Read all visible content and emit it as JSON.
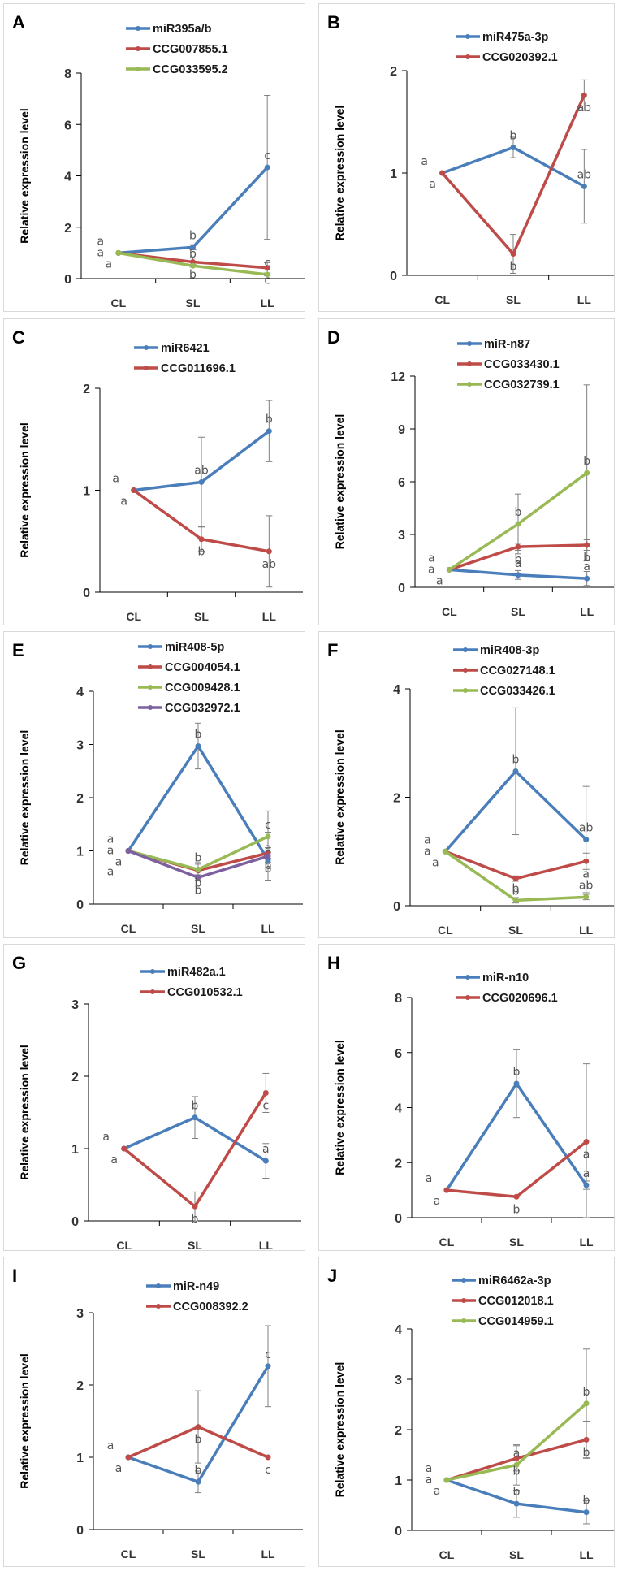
{
  "colors": {
    "blue": "#4a7ebb",
    "red": "#be4b48",
    "green": "#98b954",
    "purple": "#7d60a0",
    "axis": "#000000",
    "errorbar": "#7f7f7f"
  },
  "chart_data": [
    {
      "panel": "A",
      "type": "line",
      "categories": [
        "CL",
        "SL",
        "LL"
      ],
      "ylabel": "Relative expression level",
      "ylim": [
        0,
        8
      ],
      "yticks": [
        0,
        2,
        4,
        6,
        8
      ],
      "legend": "top-right",
      "series": [
        {
          "name": "miR395a/b",
          "color": "blue",
          "values": [
            1.0,
            1.22,
            4.33
          ],
          "errors": [
            0.0,
            0.1,
            2.8
          ],
          "letters": [
            "a",
            "b",
            "c"
          ]
        },
        {
          "name": "CCG007855.1",
          "color": "red",
          "values": [
            1.0,
            0.65,
            0.42
          ],
          "errors": [
            0.0,
            0.15,
            0.2
          ],
          "letters": [
            "a",
            "b",
            "c"
          ]
        },
        {
          "name": "CCG033595.2",
          "color": "green",
          "values": [
            1.0,
            0.5,
            0.16
          ],
          "errors": [
            0.0,
            0.05,
            0.05
          ],
          "letters": [
            "a",
            "b",
            "c"
          ]
        }
      ]
    },
    {
      "panel": "B",
      "type": "line",
      "categories": [
        "CL",
        "SL",
        "LL"
      ],
      "ylabel": "Relative expression level",
      "ylim": [
        0,
        2
      ],
      "yticks": [
        0,
        1,
        2
      ],
      "legend": "top-right",
      "series": [
        {
          "name": "miR475a-3p",
          "color": "blue",
          "values": [
            1.0,
            1.25,
            0.87
          ],
          "errors": [
            0.0,
            0.1,
            0.36
          ],
          "letters": [
            "a",
            "b",
            "ab"
          ]
        },
        {
          "name": "CCG020392.1",
          "color": "red",
          "values": [
            1.0,
            0.21,
            1.76
          ],
          "errors": [
            0.0,
            0.19,
            0.15
          ],
          "letters": [
            "a",
            "b",
            "ab"
          ]
        }
      ]
    },
    {
      "panel": "C",
      "type": "line",
      "categories": [
        "CL",
        "SL",
        "LL"
      ],
      "ylabel": "Relative expression level",
      "ylim": [
        0,
        2
      ],
      "yticks": [
        0,
        1,
        2
      ],
      "legend": "top-right",
      "series": [
        {
          "name": "miR6421",
          "color": "blue",
          "values": [
            1.0,
            1.08,
            1.58
          ],
          "errors": [
            0.0,
            0.44,
            0.3
          ],
          "letters": [
            "a",
            "ab",
            "b"
          ]
        },
        {
          "name": "CCG011696.1",
          "color": "red",
          "values": [
            1.0,
            0.52,
            0.4
          ],
          "errors": [
            0.0,
            0.12,
            0.35
          ],
          "letters": [
            "a",
            "b",
            "ab"
          ]
        }
      ]
    },
    {
      "panel": "D",
      "type": "line",
      "categories": [
        "CL",
        "SL",
        "LL"
      ],
      "ylabel": "Relative expression level",
      "ylim": [
        0,
        12
      ],
      "yticks": [
        0,
        3,
        6,
        9,
        12
      ],
      "legend": "top-right",
      "series": [
        {
          "name": "miR-n87",
          "color": "blue",
          "values": [
            1.0,
            0.7,
            0.5
          ],
          "errors": [
            0.0,
            0.25,
            0.4
          ],
          "letters": [
            "a",
            "a",
            "a"
          ]
        },
        {
          "name": "CCG033430.1",
          "color": "red",
          "values": [
            1.0,
            2.3,
            2.4
          ],
          "errors": [
            0.0,
            0.2,
            0.3
          ],
          "letters": [
            "a",
            "b",
            "b"
          ]
        },
        {
          "name": "CCG032739.1",
          "color": "green",
          "values": [
            1.0,
            3.6,
            6.5
          ],
          "errors": [
            0.0,
            1.7,
            5.0
          ],
          "letters": [
            "a",
            "b",
            "b"
          ]
        }
      ]
    },
    {
      "panel": "E",
      "type": "line",
      "categories": [
        "CL",
        "SL",
        "LL"
      ],
      "ylabel": "Relative expression level",
      "ylim": [
        0,
        4
      ],
      "yticks": [
        0,
        1,
        2,
        3,
        4
      ],
      "legend": "top-right",
      "series": [
        {
          "name": "miR408-5p",
          "color": "blue",
          "values": [
            1.0,
            2.97,
            0.83
          ],
          "errors": [
            0.0,
            0.43,
            0.15
          ],
          "letters": [
            "a",
            "b",
            "a"
          ]
        },
        {
          "name": "CCG004054.1",
          "color": "red",
          "values": [
            1.0,
            0.63,
            0.96
          ],
          "errors": [
            0.0,
            0.15,
            0.1
          ],
          "letters": [
            "a",
            "b",
            "b"
          ]
        },
        {
          "name": "CCG009428.1",
          "color": "green",
          "values": [
            1.0,
            0.65,
            1.27
          ],
          "errors": [
            0.0,
            0.1,
            0.48
          ],
          "letters": [
            "a",
            "b",
            "c"
          ]
        },
        {
          "name": "CCG032972.1",
          "color": "purple",
          "values": [
            1.0,
            0.5,
            0.9
          ],
          "errors": [
            0.0,
            0.05,
            0.45
          ],
          "letters": [
            "a",
            "b",
            "b"
          ]
        }
      ]
    },
    {
      "panel": "F",
      "type": "line",
      "categories": [
        "CL",
        "SL",
        "LL"
      ],
      "ylabel": "Relative expression level",
      "ylim": [
        0,
        4
      ],
      "yticks": [
        0,
        2,
        4
      ],
      "legend": "top-right",
      "series": [
        {
          "name": "miR408-3p",
          "color": "blue",
          "values": [
            1.0,
            2.48,
            1.22
          ],
          "errors": [
            0.0,
            1.17,
            0.98
          ],
          "letters": [
            "a",
            "b",
            "ab"
          ]
        },
        {
          "name": "CCG027148.1",
          "color": "red",
          "values": [
            1.0,
            0.5,
            0.82
          ],
          "errors": [
            0.0,
            0.05,
            0.15
          ],
          "letters": [
            "a",
            "b",
            "a"
          ]
        },
        {
          "name": "CCG033426.1",
          "color": "green",
          "values": [
            1.0,
            0.1,
            0.16
          ],
          "errors": [
            0.0,
            0.05,
            0.05
          ],
          "letters": [
            "a",
            "b",
            "ab"
          ]
        }
      ]
    },
    {
      "panel": "G",
      "type": "line",
      "categories": [
        "CL",
        "SL",
        "LL"
      ],
      "ylabel": "Relative expression level",
      "ylim": [
        0,
        3
      ],
      "yticks": [
        0,
        1,
        2,
        3
      ],
      "legend": "top-right",
      "series": [
        {
          "name": "miR482a.1",
          "color": "blue",
          "values": [
            1.0,
            1.43,
            0.83
          ],
          "errors": [
            0.0,
            0.29,
            0.24
          ],
          "letters": [
            "a",
            "b",
            "a"
          ]
        },
        {
          "name": "CCG010532.1",
          "color": "red",
          "values": [
            1.0,
            0.2,
            1.77
          ],
          "errors": [
            0.0,
            0.2,
            0.27
          ],
          "letters": [
            "a",
            "b",
            "c"
          ]
        }
      ]
    },
    {
      "panel": "H",
      "type": "line",
      "categories": [
        "CL",
        "SL",
        "LL"
      ],
      "ylabel": "Relative expression level",
      "ylim": [
        0,
        8
      ],
      "yticks": [
        0,
        2,
        4,
        6,
        8
      ],
      "legend": "top-right",
      "series": [
        {
          "name": "miR-n10",
          "color": "blue",
          "values": [
            1.0,
            4.87,
            1.18
          ],
          "errors": [
            0.0,
            1.23,
            0.15
          ],
          "letters": [
            "a",
            "b",
            "a"
          ]
        },
        {
          "name": "CCG020696.1",
          "color": "red",
          "values": [
            1.0,
            0.76,
            2.76
          ],
          "errors": [
            0.0,
            0.0,
            2.83
          ],
          "letters": [
            "a",
            "b",
            "a"
          ]
        }
      ]
    },
    {
      "panel": "I",
      "type": "line",
      "categories": [
        "CL",
        "SL",
        "LL"
      ],
      "ylabel": "Relative expression level",
      "ylim": [
        0,
        3
      ],
      "yticks": [
        0,
        1,
        2,
        3
      ],
      "legend": "top-right",
      "series": [
        {
          "name": "miR-n49",
          "color": "blue",
          "values": [
            1.0,
            0.66,
            2.26
          ],
          "errors": [
            0.0,
            0.15,
            0.56
          ],
          "letters": [
            "a",
            "b",
            "c"
          ]
        },
        {
          "name": "CCG008392.2",
          "color": "red",
          "values": [
            1.0,
            1.42,
            1.0
          ],
          "errors": [
            0.0,
            0.5,
            0.0
          ],
          "letters": [
            "a",
            "b",
            "c"
          ]
        }
      ]
    },
    {
      "panel": "J",
      "type": "line",
      "categories": [
        "CL",
        "SL",
        "LL"
      ],
      "ylabel": "Relative expression level",
      "ylim": [
        0,
        4
      ],
      "yticks": [
        0,
        1,
        2,
        3,
        4
      ],
      "legend": "top-right",
      "series": [
        {
          "name": "miR6462a-3p",
          "color": "blue",
          "values": [
            1.0,
            0.53,
            0.36
          ],
          "errors": [
            0.0,
            0.27,
            0.23
          ],
          "letters": [
            "a",
            "b",
            "b"
          ]
        },
        {
          "name": "CCG012018.1",
          "color": "red",
          "values": [
            1.0,
            1.43,
            1.8
          ],
          "errors": [
            0.0,
            0.25,
            0.37
          ],
          "letters": [
            "a",
            "b",
            "b"
          ]
        },
        {
          "name": "CCG014959.1",
          "color": "green",
          "values": [
            1.0,
            1.3,
            2.52
          ],
          "errors": [
            0.0,
            0.4,
            1.08
          ],
          "letters": [
            "a",
            "a",
            "b"
          ]
        }
      ]
    }
  ]
}
